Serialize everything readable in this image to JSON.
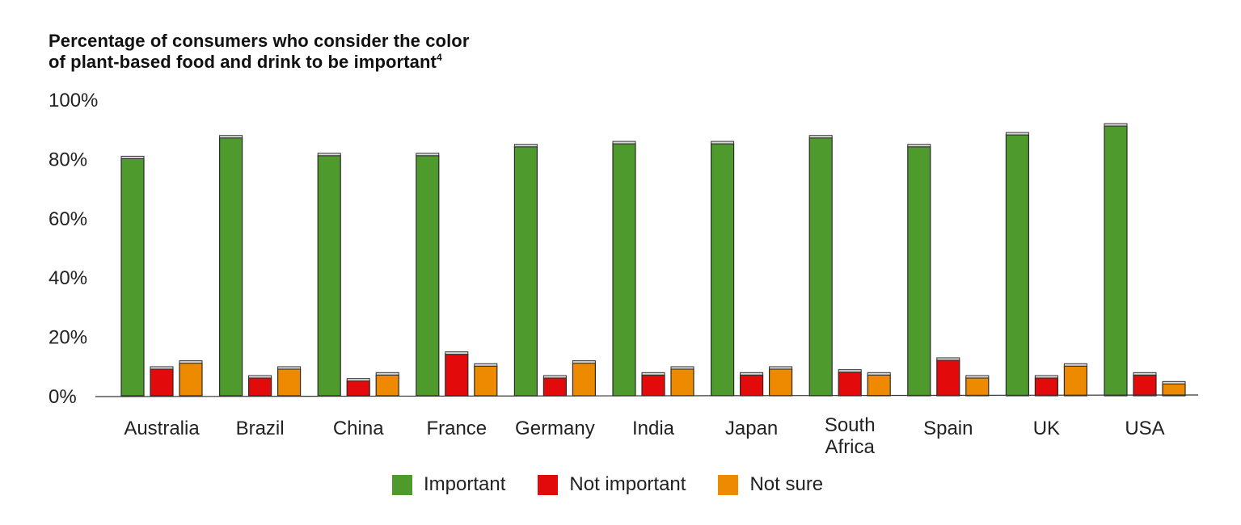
{
  "chart_data": {
    "type": "bar",
    "title_line1": "Percentage of consumers who consider the color",
    "title_line2": "of plant-based food and drink to be important",
    "title_footnote": "4",
    "categories": [
      "Australia",
      "Brazil",
      "China",
      "France",
      "Germany",
      "India",
      "Japan",
      "South Africa",
      "Spain",
      "UK",
      "USA"
    ],
    "series": [
      {
        "name": "Important",
        "color": "#4e9a2d",
        "values": [
          80,
          87,
          81,
          81,
          84,
          85,
          85,
          87,
          84,
          88,
          91
        ]
      },
      {
        "name": "Not important",
        "color": "#e20a0a",
        "values": [
          9,
          6,
          5,
          14,
          6,
          7,
          7,
          8,
          12,
          6,
          7
        ]
      },
      {
        "name": "Not sure",
        "color": "#ee8a00",
        "values": [
          11,
          9,
          7,
          10,
          11,
          9,
          9,
          7,
          6,
          10,
          4
        ]
      }
    ],
    "y_ticks": [
      "0%",
      "20%",
      "40%",
      "60%",
      "80%",
      "100%"
    ],
    "ylim": [
      0,
      100
    ],
    "xlabel": "",
    "ylabel": "",
    "legend_position": "bottom-center",
    "grid": false
  }
}
